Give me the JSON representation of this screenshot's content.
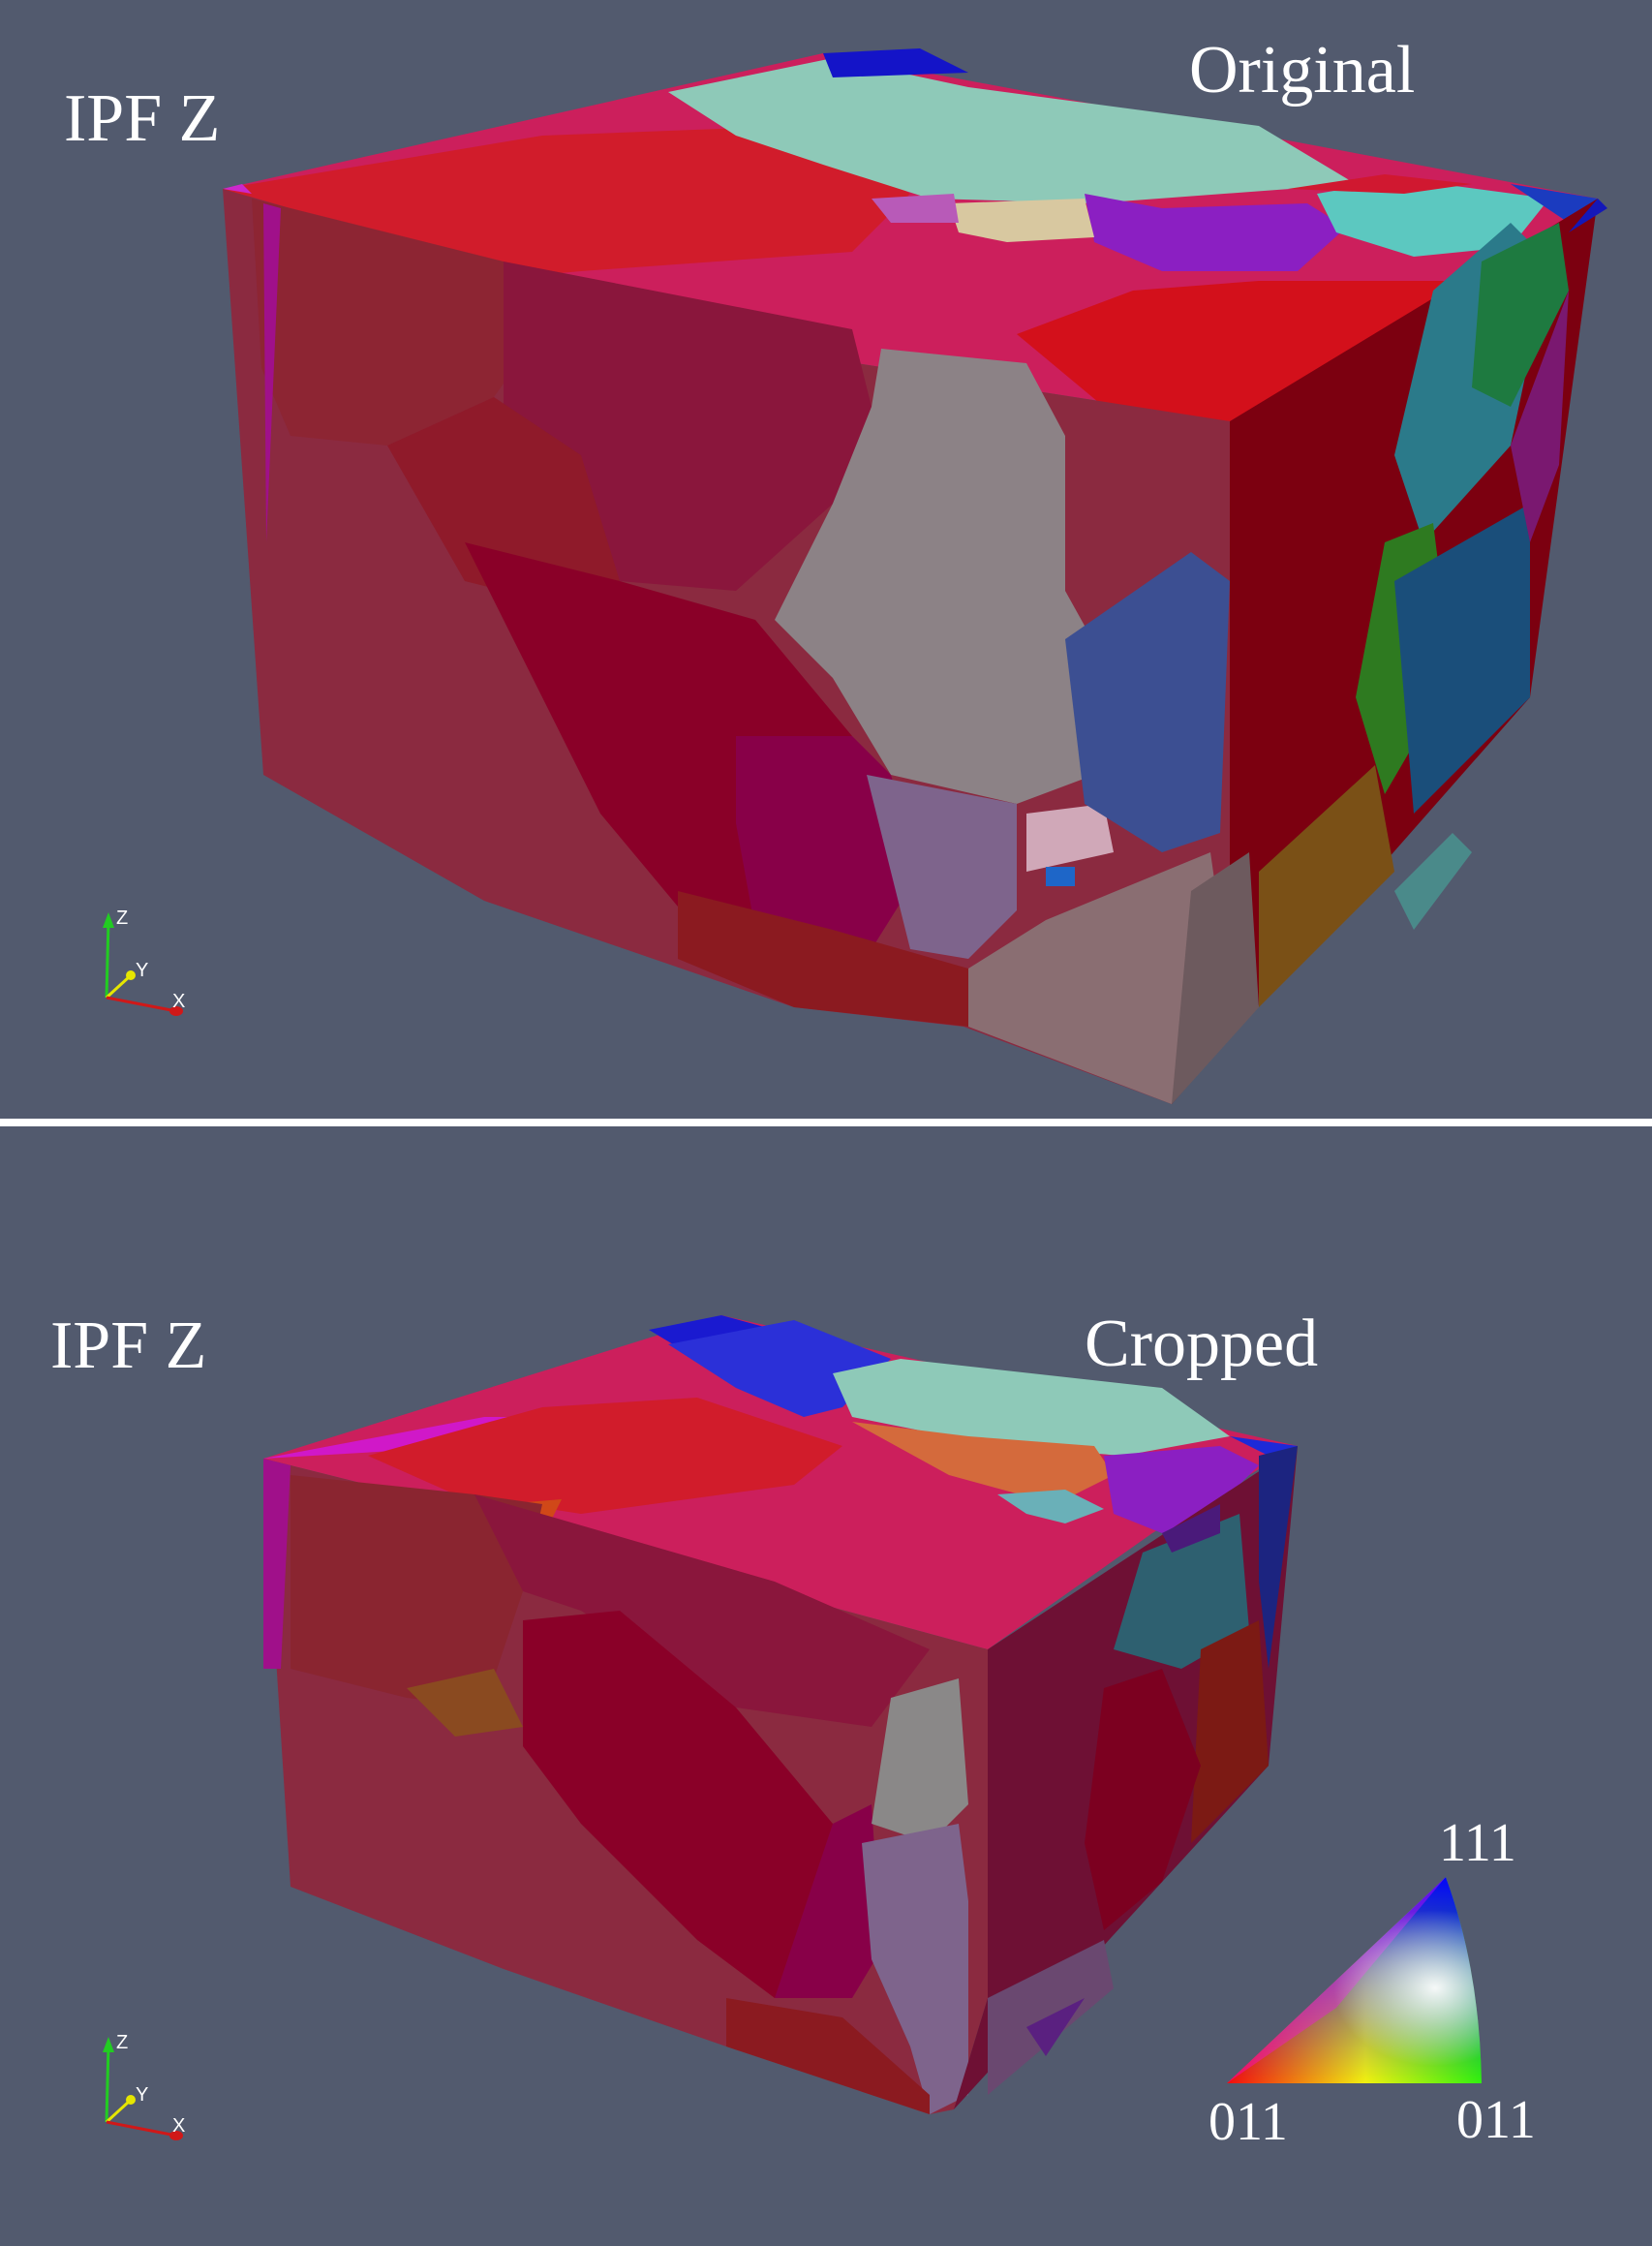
{
  "panels": [
    {
      "label_left": "IPF Z",
      "label_right": "Original"
    },
    {
      "label_left": "IPF Z",
      "label_right": "Cropped"
    }
  ],
  "axes_triad": {
    "z": "Z",
    "y": "Y",
    "x": "X",
    "colors": {
      "x": "#d01818",
      "y": "#e6e600",
      "z": "#22cc22"
    }
  },
  "ipf_legend": {
    "top": "111",
    "bottom_left": "011",
    "bottom_right": "011",
    "colors": {
      "corner_001": "#ff0000",
      "corner_011": "#00ff00",
      "corner_111": "#0000ff"
    }
  },
  "background_color": "#525a6e"
}
